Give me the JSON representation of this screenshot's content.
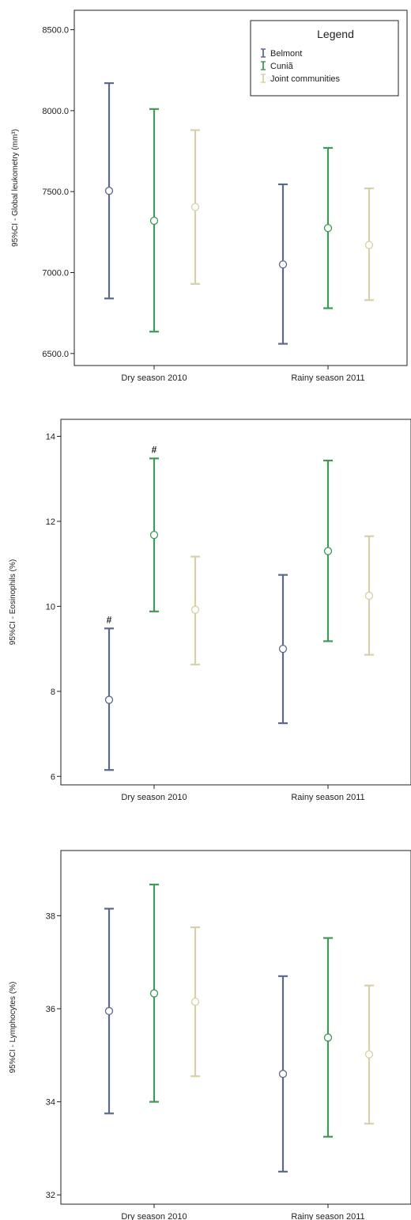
{
  "chart_data": [
    {
      "type": "errorbar",
      "ylabel": "95%CI - Global leukometry (mm³)",
      "categories": [
        "Dry season 2010",
        "Rainy season 2011"
      ],
      "ylim": [
        6460,
        8620
      ],
      "yticks": [
        6500.0,
        7000.0,
        7500.0,
        8000.0,
        8500.0
      ],
      "tick_decimals": 1,
      "legend": {
        "title": "Legend",
        "placement": "top-right",
        "entries": [
          "Belmont",
          "Cuniã",
          "Joint communities"
        ]
      },
      "series": [
        {
          "name": "Belmont",
          "color": "#5a6a8c",
          "mean": [
            7505,
            7050
          ],
          "lower": [
            6840,
            6560
          ],
          "upper": [
            8170,
            7545
          ]
        },
        {
          "name": "Cuniã",
          "color": "#3f9a55",
          "mean": [
            7320,
            7275
          ],
          "lower": [
            6635,
            6780
          ],
          "upper": [
            8010,
            7770
          ]
        },
        {
          "name": "Joint communities",
          "color": "#d6d1a6",
          "mean": [
            7405,
            7170
          ],
          "lower": [
            6930,
            6830
          ],
          "upper": [
            7880,
            7520
          ]
        }
      ],
      "annotations": []
    },
    {
      "type": "errorbar",
      "ylabel": "95%CI - Eosinophils (%)",
      "categories": [
        "Dry season 2010",
        "Rainy season 2011"
      ],
      "ylim": [
        5.8,
        14.4
      ],
      "yticks": [
        6,
        8,
        10,
        12,
        14
      ],
      "tick_decimals": 0,
      "series": [
        {
          "name": "Belmont",
          "color": "#5a6a8c",
          "mean": [
            7.8,
            9.0
          ],
          "lower": [
            6.15,
            7.25
          ],
          "upper": [
            9.48,
            10.74
          ]
        },
        {
          "name": "Cuniã",
          "color": "#3f9a55",
          "mean": [
            11.68,
            11.3
          ],
          "lower": [
            9.88,
            9.18
          ],
          "upper": [
            13.48,
            13.43
          ]
        },
        {
          "name": "Joint communities",
          "color": "#d6d1a6",
          "mean": [
            9.92,
            10.25
          ],
          "lower": [
            8.63,
            8.86
          ],
          "upper": [
            11.17,
            11.65
          ]
        }
      ],
      "annotations": [
        {
          "text": "#",
          "category": 0,
          "series": 0,
          "at": "upper"
        },
        {
          "text": "#",
          "category": 0,
          "series": 1,
          "at": "upper"
        }
      ]
    },
    {
      "type": "errorbar",
      "ylabel": "95%CI - Lymphocytes (%)",
      "categories": [
        "Dry season 2010",
        "Rainy season 2011"
      ],
      "ylim": [
        31.8,
        39.4
      ],
      "yticks": [
        32,
        34,
        36,
        38
      ],
      "tick_decimals": 0,
      "series": [
        {
          "name": "Belmont",
          "color": "#5a6a8c",
          "mean": [
            35.95,
            34.6
          ],
          "lower": [
            33.75,
            32.5
          ],
          "upper": [
            38.15,
            36.7
          ]
        },
        {
          "name": "Cuniã",
          "color": "#3f9a55",
          "mean": [
            36.33,
            35.38
          ],
          "lower": [
            34.0,
            33.25
          ],
          "upper": [
            38.67,
            37.52
          ]
        },
        {
          "name": "Joint communities",
          "color": "#d6d1a6",
          "mean": [
            36.15,
            35.02
          ],
          "lower": [
            34.55,
            33.53
          ],
          "upper": [
            37.75,
            36.5
          ]
        }
      ],
      "annotations": []
    }
  ]
}
